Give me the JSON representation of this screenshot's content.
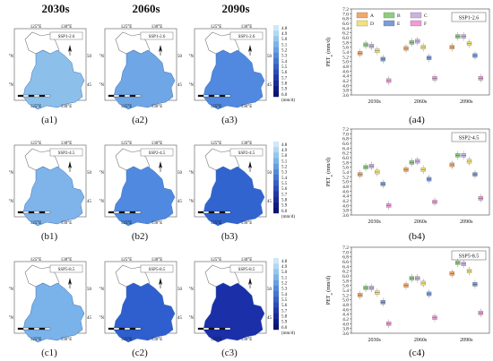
{
  "headers": [
    "2030s",
    "2060s",
    "2090s"
  ],
  "map_labels": {
    "lon": [
      "125°E",
      "130°E"
    ],
    "lat_upper": "50°N",
    "lat_lower": "45°N"
  },
  "colorbar": {
    "ticks": [
      "4.8",
      "4.9",
      "5.0",
      "5.1",
      "5.2",
      "5.3",
      "5.4",
      "5.5",
      "5.6",
      "5.7",
      "5.8",
      "5.9",
      "6.0"
    ],
    "unit": "(mm/d)"
  },
  "rows": [
    {
      "scenario": "SSP1-2.6",
      "panel_labels": [
        "(a1)",
        "(a2)",
        "(a3)",
        "(a4)"
      ],
      "map_fill": [
        "#8cc0eb",
        "#6fa6e5",
        "#5089df"
      ]
    },
    {
      "scenario": "SSP2-4.5",
      "panel_labels": [
        "(b1)",
        "(b2)",
        "(b3)",
        "(b4)"
      ],
      "map_fill": [
        "#7fb4ea",
        "#4f8ae0",
        "#3264cf"
      ]
    },
    {
      "scenario": "SSP5-8.5",
      "panel_labels": [
        "(c1)",
        "(c2)",
        "(c3)",
        "(c4)"
      ],
      "map_fill": [
        "#7ab2ea",
        "#2f5fce",
        "#1a2fa8"
      ]
    }
  ],
  "chart_data": [
    {
      "type": "box",
      "title": "SSP1-2.6",
      "ylabel": "PET",
      "ylabel_sub": "a",
      "ylabel_unit": "(mm/d)",
      "ylim": [
        3.6,
        7.2
      ],
      "yticks": [
        "3.6",
        "3.8",
        "4.0",
        "4.2",
        "4.4",
        "4.6",
        "4.8",
        "5.0",
        "5.2",
        "5.4",
        "5.6",
        "5.8",
        "6.0",
        "6.2",
        "6.4",
        "6.6",
        "6.8",
        "7.0",
        "7.2"
      ],
      "categories": [
        "2030s",
        "2060s",
        "2090s"
      ],
      "legend": [
        {
          "name": "A",
          "color": "#f2a86a"
        },
        {
          "name": "B",
          "color": "#8ccf7e"
        },
        {
          "name": "C",
          "color": "#c9b3e0"
        },
        {
          "name": "D",
          "color": "#f3e27a"
        },
        {
          "name": "E",
          "color": "#7d9bd6"
        },
        {
          "name": "F",
          "color": "#f29ad8"
        }
      ],
      "series": [
        {
          "name": "A",
          "values": [
            5.35,
            5.55,
            5.6
          ]
        },
        {
          "name": "B",
          "values": [
            5.7,
            5.8,
            6.05
          ]
        },
        {
          "name": "C",
          "values": [
            5.65,
            5.85,
            6.05
          ]
        },
        {
          "name": "D",
          "values": [
            5.45,
            5.6,
            5.75
          ]
        },
        {
          "name": "E",
          "values": [
            5.1,
            5.15,
            5.25
          ]
        },
        {
          "name": "F",
          "values": [
            4.2,
            4.3,
            4.3
          ]
        }
      ]
    },
    {
      "type": "box",
      "title": "SSP2-4.5",
      "ylabel": "PET",
      "ylabel_sub": "a",
      "ylabel_unit": "(mm/d)",
      "ylim": [
        3.6,
        7.2
      ],
      "yticks": [
        "3.6",
        "3.8",
        "4.0",
        "4.2",
        "4.4",
        "4.6",
        "4.8",
        "5.0",
        "5.2",
        "5.4",
        "5.6",
        "5.8",
        "6.0",
        "6.2",
        "6.4",
        "6.6",
        "6.8",
        "7.0",
        "7.2"
      ],
      "categories": [
        "2030s",
        "2060s",
        "2090s"
      ],
      "series": [
        {
          "name": "A",
          "values": [
            5.3,
            5.5,
            5.7
          ]
        },
        {
          "name": "B",
          "values": [
            5.6,
            5.8,
            6.1
          ]
        },
        {
          "name": "C",
          "values": [
            5.65,
            5.85,
            6.1
          ]
        },
        {
          "name": "D",
          "values": [
            5.4,
            5.5,
            5.85
          ]
        },
        {
          "name": "E",
          "values": [
            4.9,
            5.1,
            5.3
          ]
        },
        {
          "name": "F",
          "values": [
            4.0,
            4.15,
            4.3
          ]
        }
      ]
    },
    {
      "type": "box",
      "title": "SSP5-8.5",
      "ylabel": "PET",
      "ylabel_sub": "a",
      "ylabel_unit": "(mm/d)",
      "ylim": [
        3.6,
        7.2
      ],
      "yticks": [
        "3.6",
        "3.8",
        "4.0",
        "4.2",
        "4.4",
        "4.6",
        "4.8",
        "5.0",
        "5.2",
        "5.4",
        "5.6",
        "5.8",
        "6.0",
        "6.2",
        "6.4",
        "6.6",
        "6.8",
        "7.0",
        "7.2"
      ],
      "categories": [
        "2030s",
        "2060s",
        "2090s"
      ],
      "series": [
        {
          "name": "A",
          "values": [
            5.2,
            5.6,
            6.1
          ]
        },
        {
          "name": "B",
          "values": [
            5.5,
            5.9,
            6.55
          ]
        },
        {
          "name": "C",
          "values": [
            5.5,
            5.9,
            6.5
          ]
        },
        {
          "name": "D",
          "values": [
            5.3,
            5.7,
            6.2
          ]
        },
        {
          "name": "E",
          "values": [
            4.9,
            5.25,
            5.65
          ]
        },
        {
          "name": "F",
          "values": [
            4.0,
            4.25,
            4.45
          ]
        }
      ]
    }
  ]
}
